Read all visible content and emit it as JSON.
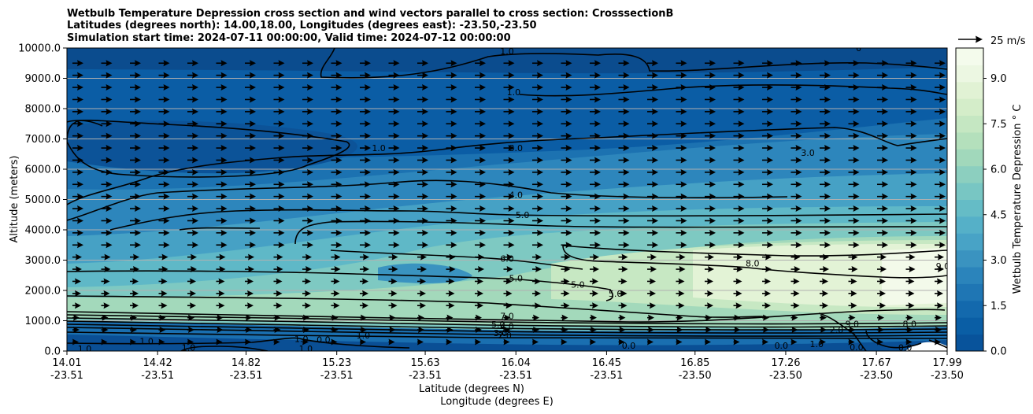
{
  "chart_data": {
    "type": "heatmap",
    "title_lines": [
      "Wetbulb Temperature Depression cross section and wind vectors parallel to cross section: CrosssectionB",
      "Latitudes (degrees north): 14.00,18.00, Longitudes (degrees east): -23.50,-23.50",
      "Simulation start time: 2024-07-11 00:00:00, Valid time: 2024-07-12 00:00:00"
    ],
    "ylabel": "Altitude (meters)",
    "xlabel_lat": "Latitude (degrees N)",
    "xlabel_lon": "Longitude (degrees E)",
    "ylim": [
      0,
      10000
    ],
    "y_ticks": [
      "0.0",
      "1000.0",
      "2000.0",
      "3000.0",
      "4000.0",
      "5000.0",
      "6000.0",
      "7000.0",
      "8000.0",
      "9000.0",
      "10000.0"
    ],
    "x_ticks": [
      {
        "lat": "14.01",
        "lon": "-23.51"
      },
      {
        "lat": "14.42",
        "lon": "-23.51"
      },
      {
        "lat": "14.82",
        "lon": "-23.51"
      },
      {
        "lat": "15.23",
        "lon": "-23.51"
      },
      {
        "lat": "15.63",
        "lon": "-23.51"
      },
      {
        "lat": "16.04",
        "lon": "-23.51"
      },
      {
        "lat": "16.45",
        "lon": "-23.51"
      },
      {
        "lat": "16.85",
        "lon": "-23.50"
      },
      {
        "lat": "17.26",
        "lon": "-23.50"
      },
      {
        "lat": "17.67",
        "lon": "-23.50"
      },
      {
        "lat": "17.99",
        "lon": "-23.50"
      }
    ],
    "x_tick_values": [
      14.01,
      14.42,
      14.82,
      15.23,
      15.63,
      16.04,
      16.45,
      16.85,
      17.26,
      17.67,
      17.99
    ],
    "grid_y": true,
    "colorbar": {
      "label": "Wetbulb Temperature Depression $^\\circ$C",
      "label_text": "Wetbulb Temperature Depression ° C",
      "range": [
        0,
        10
      ],
      "ticks": [
        "0.0",
        "1.5",
        "3.0",
        "4.5",
        "6.0",
        "7.5",
        "9.0"
      ],
      "tick_values": [
        0,
        1.5,
        3.0,
        4.5,
        6.0,
        7.5,
        9.0
      ],
      "colors": [
        "#08539b",
        "#0a5ea5",
        "#1369ad",
        "#1f76b4",
        "#2b84bb",
        "#3a93c0",
        "#48a3c6",
        "#55b0c8",
        "#65bcc6",
        "#78c6c3",
        "#8ccfbf",
        "#a1d8bb",
        "#b4e0bc",
        "#c5e7c2",
        "#d4edc9",
        "#e1f2d4",
        "#ecf7e2",
        "#f4fbec"
      ]
    },
    "wind_key": {
      "label": "25 m/s",
      "speed": 25
    },
    "wind_direction": "parallel to cross section, positive (toward increasing latitude)",
    "contour_labels": [
      {
        "text": "1.0",
        "lat": 16.0,
        "alt": 9900
      },
      {
        "text": "1.0",
        "lat": 16.03,
        "alt": 8550
      },
      {
        "text": "1.0",
        "lat": 15.42,
        "alt": 6700
      },
      {
        "text": "3.0",
        "lat": 16.04,
        "alt": 6700
      },
      {
        "text": "3.0",
        "lat": 17.36,
        "alt": 6550
      },
      {
        "text": "4.0",
        "lat": 16.04,
        "alt": 5150
      },
      {
        "text": "5.0",
        "lat": 16.07,
        "alt": 4500
      },
      {
        "text": "6.0",
        "lat": 16.0,
        "alt": 3050
      },
      {
        "text": "5.0",
        "lat": 16.04,
        "alt": 2400
      },
      {
        "text": "5.0",
        "lat": 16.32,
        "alt": 2200
      },
      {
        "text": "5.0",
        "lat": 16.49,
        "alt": 1900
      },
      {
        "text": "8.0",
        "lat": 17.11,
        "alt": 2900
      },
      {
        "text": "9.0",
        "lat": 17.97,
        "alt": 2800
      },
      {
        "text": "7.0",
        "lat": 16.0,
        "alt": 1150
      },
      {
        "text": "5.0",
        "lat": 15.96,
        "alt": 880
      },
      {
        "text": "4.0",
        "lat": 16.0,
        "alt": 820
      },
      {
        "text": "3.0",
        "lat": 15.97,
        "alt": 600
      },
      {
        "text": "2.0",
        "lat": 15.99,
        "alt": 520
      },
      {
        "text": "0.0",
        "lat": 16.55,
        "alt": 180
      },
      {
        "text": "0.0",
        "lat": 17.24,
        "alt": 180
      },
      {
        "text": "0.0",
        "lat": 15.17,
        "alt": 380
      },
      {
        "text": "1.0",
        "lat": 14.09,
        "alt": 80
      },
      {
        "text": "1.0",
        "lat": 14.56,
        "alt": 120
      },
      {
        "text": "1.0",
        "lat": 14.37,
        "alt": 320
      },
      {
        "text": "1.0",
        "lat": 15.09,
        "alt": 80
      },
      {
        "text": "1.0",
        "lat": 15.35,
        "alt": 520
      },
      {
        "text": "1.0",
        "lat": 15.07,
        "alt": 400
      },
      {
        "text": "2.0",
        "lat": 17.49,
        "alt": 700
      },
      {
        "text": "1.0",
        "lat": 17.4,
        "alt": 240
      },
      {
        "text": "0.0",
        "lat": 17.58,
        "alt": 130
      },
      {
        "text": "0.0",
        "lat": 17.8,
        "alt": 120
      },
      {
        "text": "8.0",
        "lat": 17.82,
        "alt": 900
      },
      {
        "text": "9.0",
        "lat": 17.56,
        "alt": 900
      },
      {
        "text": "0",
        "lat": 17.59,
        "alt": 10000
      }
    ]
  }
}
